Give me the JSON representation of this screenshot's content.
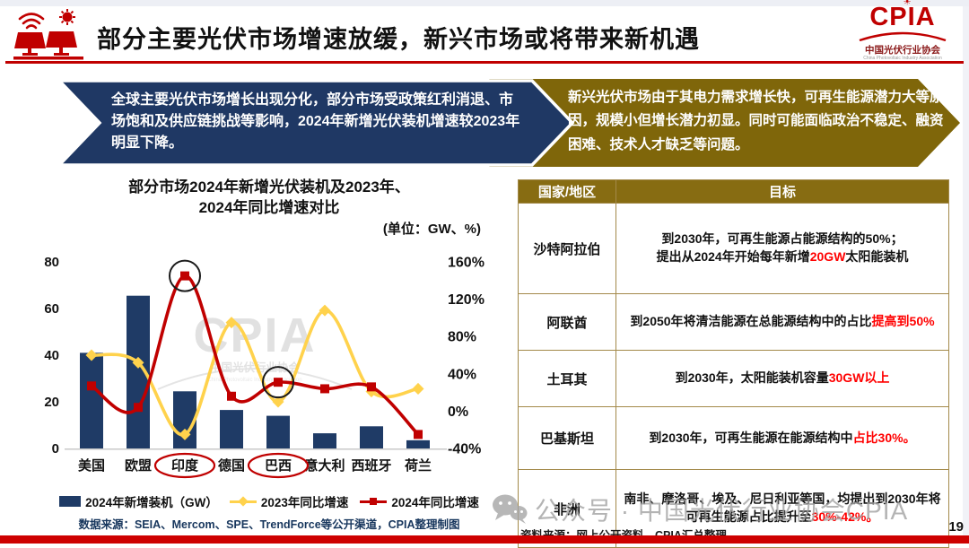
{
  "slide": {
    "page_number": "19",
    "accent_red": "#C00000",
    "navy": "#1F3864",
    "gold": "#7F660A"
  },
  "header": {
    "title": "部分主要光伏市场增速放缓，新兴市场或将带来新机遇",
    "logo": {
      "acronym": "CPIA",
      "name_cn": "中国光伏行业协会",
      "name_en": "China Photovoltaic Industry Association"
    }
  },
  "banners": {
    "left_text": "全球主要光伏市场增长出现分化，部分市场受政策红利消退、市场饱和及供应链挑战等影响，2024年新增光伏装机增速较2023年明显下降。",
    "right_text": "新兴光伏市场由于其电力需求增长快，可再生能源潜力大等原因，规模小但增长潜力初显。同时可能面临政治不稳定、融资困难、技术人才缺乏等问题。"
  },
  "chart_data": {
    "type": "bar+line combo",
    "title": "部分市场2024年新增光伏装机及2023年、\n2024年同比增速对比",
    "unit_label": "(单位：GW、%)",
    "categories": [
      "美国",
      "欧盟",
      "印度",
      "德国",
      "巴西",
      "意大利",
      "西班牙",
      "荷兰"
    ],
    "series": [
      {
        "name": "2024年新增装机（GW）",
        "type": "bar",
        "axis": "left",
        "color": "#1F3B66",
        "values": [
          41,
          65.5,
          24.5,
          16.5,
          14,
          6.5,
          9.5,
          3.5
        ]
      },
      {
        "name": "2023年同比增速",
        "type": "line",
        "marker": "diamond",
        "axis": "right",
        "color": "#FFD24C",
        "values": [
          60,
          52,
          -25,
          95,
          10,
          108,
          21,
          24
        ]
      },
      {
        "name": "2024年同比增速",
        "type": "line",
        "marker": "square",
        "axis": "right",
        "color": "#C00000",
        "values": [
          27,
          4,
          145,
          16,
          31,
          24,
          26,
          -25
        ]
      }
    ],
    "left_axis": {
      "min": 0,
      "max": 80,
      "ticks": [
        0,
        20,
        40,
        60,
        80
      ]
    },
    "right_axis": {
      "min": -40,
      "max": 160,
      "ticks": [
        "-40%",
        "0%",
        "40%",
        "80%",
        "120%",
        "160%"
      ]
    },
    "annotations": {
      "circled_point_indexes": [
        2,
        4
      ],
      "circled_label_indexes": [
        2,
        4
      ]
    },
    "chart_watermark": {
      "text": "CPIA",
      "subtext": "中国光伏行业协会",
      "subtext_en": "China Photovoltaic Industry Association"
    },
    "source": "数据来源：SEIA、Mercom、SPE、TrendForce等公开渠道，CPIA整理制图"
  },
  "table": {
    "headers": [
      "国家/地区",
      "目标"
    ],
    "rows": [
      {
        "country": "沙特阿拉伯",
        "goal": [
          {
            "text": "到2030年，可再生能源占能源结构的50%；\n提出从2024年开始每年新增"
          },
          {
            "text": "20GW",
            "red": true
          },
          {
            "text": "太阳能装机"
          }
        ]
      },
      {
        "country": "阿联酋",
        "goal": [
          {
            "text": "到2050年将清洁能源在总能源结构中的占比"
          },
          {
            "text": "提高到50%",
            "red": true
          }
        ]
      },
      {
        "country": "土耳其",
        "goal": [
          {
            "text": "到2030年，太阳能装机容量"
          },
          {
            "text": "30GW以上",
            "red": true
          }
        ]
      },
      {
        "country": "巴基斯坦",
        "goal": [
          {
            "text": "到2030年，可再生能源在能源结构中"
          },
          {
            "text": "占比30%。",
            "red": true
          }
        ]
      },
      {
        "country": "非洲",
        "goal": [
          {
            "text": "南非、摩洛哥、埃及、尼日利亚等国，均提出到2030年将可再生能源占比提升至"
          },
          {
            "text": "30%-42%。",
            "red": true
          }
        ]
      }
    ],
    "source": "资料来源：网上公开资料，CPIA汇总整理"
  },
  "watermark_banner": {
    "text": "公众号 · 中国光伏行业协会CPIA"
  }
}
